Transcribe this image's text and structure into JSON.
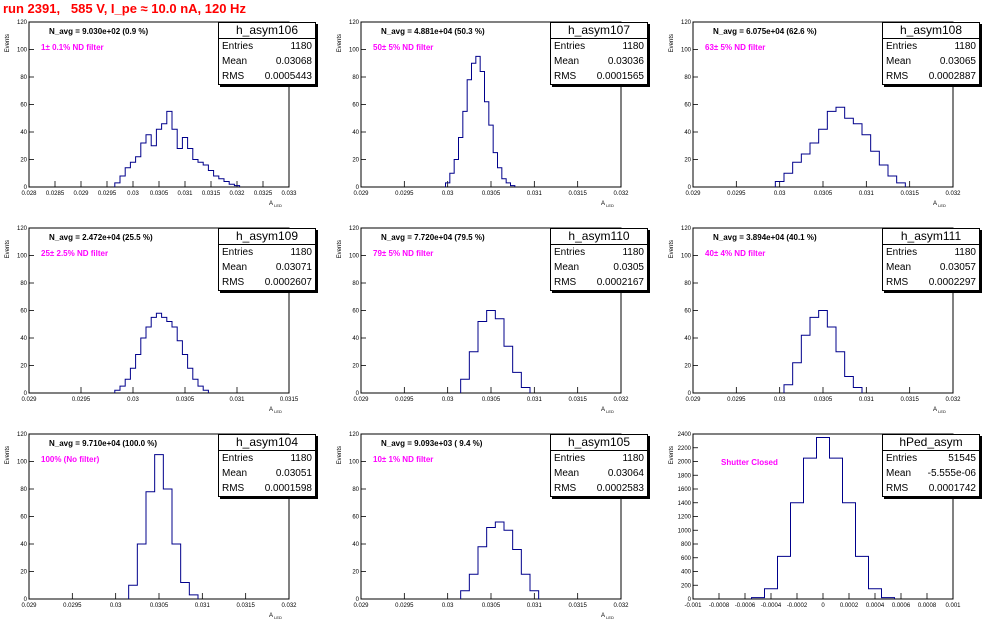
{
  "title": "run 2391,   585 V, I_pe ≈ 10.0 nA, 120 Hz",
  "stats_labels": {
    "entries": "Entries",
    "mean": "Mean",
    "rms": "RMS"
  },
  "colors": {
    "title": "#ff0000",
    "histogram": "#00008b",
    "annotation": "#ff00ff"
  },
  "panels": [
    {
      "name": "h_asym106",
      "entries": "1180",
      "mean": "0.03068",
      "rms": "0.0005443",
      "navg": "N_avg = 9.030e+02 (0.9 %)",
      "filter": "1± 0.1% ND filter",
      "ylabel": "Events",
      "xlabel": "A",
      "xlabel_sub": "LED",
      "yticks": [
        "0",
        "20",
        "40",
        "60",
        "80",
        "100",
        "120"
      ],
      "xticks": [
        "0.028",
        "0.0285",
        "0.029",
        "0.0295",
        "0.03",
        "0.0305",
        "0.031",
        "0.0315",
        "0.032",
        "0.0325",
        "0.033"
      ]
    },
    {
      "name": "h_asym107",
      "entries": "1180",
      "mean": "0.03036",
      "rms": "0.0001565",
      "navg": "N_avg = 4.881e+04 (50.3 %)",
      "filter": "50± 5% ND filter",
      "ylabel": "Events",
      "xlabel": "A",
      "xlabel_sub": "LED",
      "yticks": [
        "0",
        "20",
        "40",
        "60",
        "80",
        "100",
        "120"
      ],
      "xticks": [
        "0.029",
        "0.0295",
        "0.03",
        "0.0305",
        "0.031",
        "0.0315",
        "0.032"
      ]
    },
    {
      "name": "h_asym108",
      "entries": "1180",
      "mean": "0.03065",
      "rms": "0.0002887",
      "navg": "N_avg = 6.075e+04 (62.6 %)",
      "filter": "63± 5% ND filter",
      "ylabel": "Events",
      "xlabel": "A",
      "xlabel_sub": "LED",
      "yticks": [
        "0",
        "20",
        "40",
        "60",
        "80",
        "100",
        "120"
      ],
      "xticks": [
        "0.029",
        "0.0295",
        "0.03",
        "0.0305",
        "0.031",
        "0.0315",
        "0.032"
      ]
    },
    {
      "name": "h_asym109",
      "entries": "1180",
      "mean": "0.03071",
      "rms": "0.0002607",
      "navg": "N_avg = 2.472e+04 (25.5 %)",
      "filter": "25± 2.5% ND filter",
      "ylabel": "Events",
      "xlabel": "A",
      "xlabel_sub": "LED",
      "yticks": [
        "0",
        "20",
        "40",
        "60",
        "80",
        "100",
        "120"
      ],
      "xticks": [
        "0.029",
        "0.0295",
        "0.03",
        "0.0305",
        "0.031",
        "0.0315"
      ]
    },
    {
      "name": "h_asym110",
      "entries": "1180",
      "mean": "0.0305",
      "rms": "0.0002167",
      "navg": "N_avg = 7.720e+04 (79.5 %)",
      "filter": "79± 5% ND filter",
      "ylabel": "Events",
      "xlabel": "A",
      "xlabel_sub": "LED",
      "yticks": [
        "0",
        "20",
        "40",
        "60",
        "80",
        "100",
        "120"
      ],
      "xticks": [
        "0.029",
        "0.0295",
        "0.03",
        "0.0305",
        "0.031",
        "0.0315",
        "0.032"
      ]
    },
    {
      "name": "h_asym111",
      "entries": "1180",
      "mean": "0.03057",
      "rms": "0.0002297",
      "navg": "N_avg = 3.894e+04 (40.1 %)",
      "filter": "40± 4% ND filter",
      "ylabel": "Events",
      "xlabel": "A",
      "xlabel_sub": "LED",
      "yticks": [
        "0",
        "20",
        "40",
        "60",
        "80",
        "100",
        "120"
      ],
      "xticks": [
        "0.029",
        "0.0295",
        "0.03",
        "0.0305",
        "0.031",
        "0.0315",
        "0.032"
      ]
    },
    {
      "name": "h_asym104",
      "entries": "1180",
      "mean": "0.03051",
      "rms": "0.0001598",
      "navg": "N_avg = 9.710e+04 (100.0 %)",
      "filter": "100% (No filter)",
      "ylabel": "Events",
      "xlabel": "A",
      "xlabel_sub": "LED",
      "yticks": [
        "0",
        "20",
        "40",
        "60",
        "80",
        "100",
        "120"
      ],
      "xticks": [
        "0.029",
        "0.0295",
        "0.03",
        "0.0305",
        "0.031",
        "0.0315",
        "0.032"
      ]
    },
    {
      "name": "h_asym105",
      "entries": "1180",
      "mean": "0.03064",
      "rms": "0.0002583",
      "navg": "N_avg = 9.093e+03 ( 9.4 %)",
      "filter": "10± 1% ND filter",
      "ylabel": "Events",
      "xlabel": "A",
      "xlabel_sub": "LED",
      "yticks": [
        "0",
        "20",
        "40",
        "60",
        "80",
        "100",
        "120"
      ],
      "xticks": [
        "0.029",
        "0.0295",
        "0.03",
        "0.0305",
        "0.031",
        "0.0315",
        "0.032"
      ]
    },
    {
      "name": "hPed_asym",
      "entries": "51545",
      "mean": "-5.555e-06",
      "rms": "0.0001742",
      "navg": "",
      "filter": "Shutter Closed",
      "ylabel": "Events",
      "xlabel": "",
      "xlabel_sub": "",
      "yticks": [
        "0",
        "200",
        "400",
        "600",
        "800",
        "1000",
        "1200",
        "1400",
        "1600",
        "1800",
        "2000",
        "2200",
        "2400"
      ],
      "xticks": [
        "-0.001",
        "-0.0008",
        "-0.0006",
        "-0.0004",
        "-0.0002",
        "0",
        "0.0002",
        "0.0004",
        "0.0006",
        "0.0008",
        "0.001"
      ]
    }
  ],
  "chart_data": [
    {
      "type": "bar",
      "title": "h_asym106",
      "xlabel": "A LED",
      "ylabel": "Events",
      "xlim": [
        0.028,
        0.033
      ],
      "ylim": [
        0,
        120
      ],
      "x": [
        0.0297,
        0.0298,
        0.0299,
        0.03,
        0.0301,
        0.0302,
        0.0303,
        0.0304,
        0.0305,
        0.0306,
        0.0307,
        0.0308,
        0.0309,
        0.031,
        0.0311,
        0.0312,
        0.0313,
        0.0314,
        0.0315,
        0.0316,
        0.0317,
        0.0318,
        0.0319,
        0.032
      ],
      "values": [
        3,
        8,
        14,
        18,
        22,
        32,
        38,
        30,
        42,
        46,
        55,
        42,
        28,
        36,
        28,
        20,
        18,
        16,
        12,
        8,
        6,
        4,
        2,
        1
      ]
    },
    {
      "type": "bar",
      "title": "h_asym107",
      "xlabel": "A LED",
      "ylabel": "Events",
      "xlim": [
        0.029,
        0.032
      ],
      "ylim": [
        0,
        120
      ],
      "x": [
        0.03,
        0.03005,
        0.0301,
        0.03015,
        0.0302,
        0.03025,
        0.0303,
        0.03035,
        0.0304,
        0.03045,
        0.0305,
        0.03055,
        0.0306,
        0.03065,
        0.0307,
        0.03075
      ],
      "values": [
        3,
        10,
        20,
        36,
        55,
        78,
        90,
        95,
        84,
        62,
        45,
        25,
        14,
        6,
        3,
        1
      ]
    },
    {
      "type": "bar",
      "title": "h_asym108",
      "xlabel": "A LED",
      "ylabel": "Events",
      "xlim": [
        0.029,
        0.032
      ],
      "ylim": [
        0,
        120
      ],
      "x": [
        0.03,
        0.0301,
        0.0302,
        0.0303,
        0.0304,
        0.0305,
        0.0306,
        0.0307,
        0.0308,
        0.0309,
        0.031,
        0.0311,
        0.0312,
        0.0313,
        0.0314
      ],
      "values": [
        4,
        10,
        18,
        24,
        32,
        42,
        55,
        58,
        50,
        46,
        38,
        26,
        16,
        8,
        3
      ]
    },
    {
      "type": "bar",
      "title": "h_asym109",
      "xlabel": "A LED",
      "ylabel": "Events",
      "xlim": [
        0.029,
        0.0315
      ],
      "ylim": [
        0,
        120
      ],
      "x": [
        0.02985,
        0.0299,
        0.02995,
        0.03,
        0.03005,
        0.0301,
        0.03015,
        0.0302,
        0.03025,
        0.0303,
        0.03035,
        0.0304,
        0.03045,
        0.0305,
        0.03055,
        0.0306,
        0.03065,
        0.0307
      ],
      "values": [
        2,
        5,
        10,
        18,
        28,
        40,
        48,
        55,
        58,
        55,
        52,
        48,
        38,
        28,
        18,
        10,
        5,
        2
      ]
    },
    {
      "type": "bar",
      "title": "h_asym110",
      "xlabel": "A LED",
      "ylabel": "Events",
      "xlim": [
        0.029,
        0.032
      ],
      "ylim": [
        0,
        120
      ],
      "x": [
        0.0302,
        0.0303,
        0.0304,
        0.0305,
        0.0306,
        0.0307,
        0.0308,
        0.0309
      ],
      "values": [
        10,
        30,
        52,
        60,
        54,
        34,
        15,
        4
      ]
    },
    {
      "type": "bar",
      "title": "h_asym111",
      "xlabel": "A LED",
      "ylabel": "Events",
      "xlim": [
        0.029,
        0.032
      ],
      "ylim": [
        0,
        120
      ],
      "x": [
        0.0301,
        0.0302,
        0.0303,
        0.0304,
        0.0305,
        0.0306,
        0.0307,
        0.0308,
        0.0309
      ],
      "values": [
        6,
        22,
        42,
        55,
        60,
        48,
        30,
        12,
        4
      ]
    },
    {
      "type": "bar",
      "title": "h_asym104",
      "xlabel": "A LED",
      "ylabel": "Events",
      "xlim": [
        0.029,
        0.032
      ],
      "ylim": [
        0,
        120
      ],
      "x": [
        0.0302,
        0.0303,
        0.0304,
        0.0305,
        0.0306,
        0.0307,
        0.0308,
        0.0309
      ],
      "values": [
        10,
        40,
        78,
        105,
        80,
        40,
        12,
        3
      ]
    },
    {
      "type": "bar",
      "title": "h_asym105",
      "xlabel": "A LED",
      "ylabel": "Events",
      "xlim": [
        0.029,
        0.032
      ],
      "ylim": [
        0,
        120
      ],
      "x": [
        0.0302,
        0.0303,
        0.0304,
        0.0305,
        0.0306,
        0.0307,
        0.0308,
        0.0309,
        0.031
      ],
      "values": [
        6,
        18,
        38,
        52,
        56,
        50,
        36,
        18,
        6
      ]
    },
    {
      "type": "bar",
      "title": "hPed_asym",
      "xlabel": "",
      "ylabel": "Events",
      "xlim": [
        -0.001,
        0.001
      ],
      "ylim": [
        0,
        2400
      ],
      "x": [
        -0.0005,
        -0.0004,
        -0.0003,
        -0.0002,
        -0.0001,
        0,
        0.0001,
        0.0002,
        0.0003,
        0.0004,
        0.0005
      ],
      "values": [
        20,
        150,
        620,
        1400,
        2050,
        2350,
        2050,
        1400,
        620,
        150,
        20
      ]
    }
  ]
}
